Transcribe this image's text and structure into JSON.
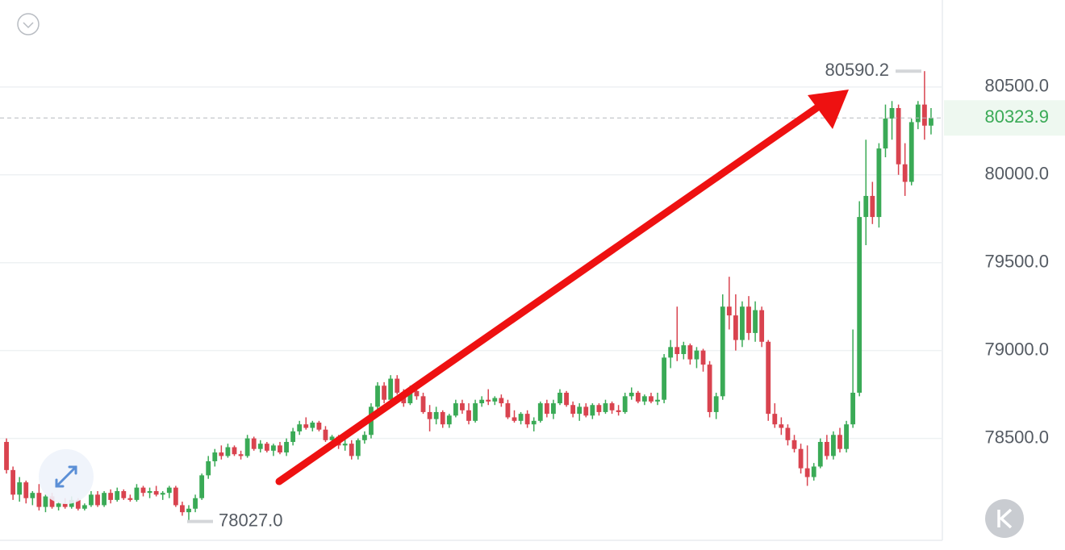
{
  "chart_data": {
    "type": "candlestick",
    "up_color": "#3aaa56",
    "down_color": "#d9434f",
    "ylim": [
      77920,
      80995
    ],
    "yticks": [
      {
        "value": 78500,
        "label": "78500.0"
      },
      {
        "value": 79000,
        "label": "79000.0"
      },
      {
        "value": 79500,
        "label": "79500.0"
      },
      {
        "value": 80000,
        "label": "80000.0"
      },
      {
        "value": 80500,
        "label": "80500.0"
      }
    ],
    "grid": true,
    "high_label": {
      "value": 80590.2,
      "label": "80590.2"
    },
    "low_label": {
      "value": 78027,
      "label": "78027.0"
    },
    "last_price": {
      "value": 80323.9,
      "label": "80323.9"
    },
    "candles": [
      [
        78480,
        78500,
        78300,
        78320
      ],
      [
        78320,
        78340,
        78150,
        78180
      ],
      [
        78180,
        78280,
        78140,
        78250
      ],
      [
        78250,
        78260,
        78130,
        78160
      ],
      [
        78160,
        78200,
        78120,
        78190
      ],
      [
        78190,
        78240,
        78090,
        78110
      ],
      [
        78110,
        78180,
        78080,
        78170
      ],
      [
        78170,
        78190,
        78100,
        78110
      ],
      [
        78110,
        78140,
        78090,
        78130
      ],
      [
        78130,
        78160,
        78100,
        78110
      ],
      [
        78110,
        78170,
        78100,
        78150
      ],
      [
        78150,
        78160,
        78090,
        78100
      ],
      [
        78100,
        78130,
        78090,
        78120
      ],
      [
        78120,
        78200,
        78110,
        78180
      ],
      [
        78180,
        78200,
        78110,
        78120
      ],
      [
        78120,
        78200,
        78110,
        78190
      ],
      [
        78190,
        78210,
        78130,
        78150
      ],
      [
        78150,
        78220,
        78140,
        78200
      ],
      [
        78200,
        78210,
        78150,
        78160
      ],
      [
        78160,
        78180,
        78140,
        78150
      ],
      [
        78150,
        78240,
        78140,
        78220
      ],
      [
        78220,
        78230,
        78170,
        78190
      ],
      [
        78190,
        78220,
        78160,
        78200
      ],
      [
        78200,
        78230,
        78170,
        78180
      ],
      [
        78180,
        78200,
        78150,
        78190
      ],
      [
        78190,
        78230,
        78160,
        78220
      ],
      [
        78220,
        78230,
        78110,
        78120
      ],
      [
        78120,
        78140,
        78060,
        78080
      ],
      [
        78080,
        78120,
        78027,
        78100
      ],
      [
        78100,
        78180,
        78080,
        78160
      ],
      [
        78160,
        78300,
        78150,
        78290
      ],
      [
        78290,
        78400,
        78270,
        78370
      ],
      [
        78370,
        78440,
        78340,
        78420
      ],
      [
        78420,
        78460,
        78380,
        78400
      ],
      [
        78400,
        78470,
        78390,
        78450
      ],
      [
        78450,
        78460,
        78400,
        78410
      ],
      [
        78410,
        78430,
        78380,
        78400
      ],
      [
        78400,
        78520,
        78390,
        78500
      ],
      [
        78500,
        78510,
        78430,
        78440
      ],
      [
        78440,
        78490,
        78420,
        78470
      ],
      [
        78470,
        78480,
        78420,
        78430
      ],
      [
        78430,
        78470,
        78400,
        78460
      ],
      [
        78460,
        78480,
        78410,
        78420
      ],
      [
        78420,
        78500,
        78400,
        78480
      ],
      [
        78480,
        78560,
        78460,
        78540
      ],
      [
        78540,
        78600,
        78520,
        78580
      ],
      [
        78580,
        78620,
        78550,
        78560
      ],
      [
        78560,
        78600,
        78540,
        78590
      ],
      [
        78590,
        78600,
        78540,
        78550
      ],
      [
        78550,
        78570,
        78480,
        78490
      ],
      [
        78490,
        78520,
        78460,
        78510
      ],
      [
        78510,
        78520,
        78440,
        78460
      ],
      [
        78460,
        78500,
        78430,
        78470
      ],
      [
        78470,
        78490,
        78380,
        78400
      ],
      [
        78400,
        78500,
        78380,
        78490
      ],
      [
        78490,
        78540,
        78470,
        78520
      ],
      [
        78520,
        78700,
        78500,
        78680
      ],
      [
        78680,
        78820,
        78650,
        78800
      ],
      [
        78800,
        78820,
        78700,
        78720
      ],
      [
        78720,
        78860,
        78700,
        78840
      ],
      [
        78840,
        78860,
        78750,
        78760
      ],
      [
        78760,
        78780,
        78680,
        78700
      ],
      [
        78700,
        78800,
        78690,
        78770
      ],
      [
        78770,
        78780,
        78720,
        78740
      ],
      [
        78740,
        78760,
        78640,
        78650
      ],
      [
        78650,
        78690,
        78540,
        78610
      ],
      [
        78610,
        78680,
        78580,
        78650
      ],
      [
        78650,
        78660,
        78560,
        78580
      ],
      [
        78580,
        78640,
        78560,
        78630
      ],
      [
        78630,
        78720,
        78620,
        78700
      ],
      [
        78700,
        78720,
        78640,
        78660
      ],
      [
        78660,
        78700,
        78580,
        78600
      ],
      [
        78600,
        78720,
        78590,
        78700
      ],
      [
        78700,
        78740,
        78680,
        78720
      ],
      [
        78720,
        78780,
        78690,
        78710
      ],
      [
        78710,
        78740,
        78690,
        78730
      ],
      [
        78730,
        78750,
        78680,
        78700
      ],
      [
        78700,
        78720,
        78610,
        78620
      ],
      [
        78620,
        78660,
        78590,
        78600
      ],
      [
        78600,
        78650,
        78580,
        78640
      ],
      [
        78640,
        78660,
        78560,
        78580
      ],
      [
        78580,
        78620,
        78540,
        78600
      ],
      [
        78600,
        78710,
        78590,
        78700
      ],
      [
        78700,
        78720,
        78620,
        78640
      ],
      [
        78640,
        78720,
        78610,
        78700
      ],
      [
        78700,
        78780,
        78690,
        78760
      ],
      [
        78760,
        78770,
        78680,
        78690
      ],
      [
        78690,
        78710,
        78620,
        78640
      ],
      [
        78640,
        78700,
        78600,
        78680
      ],
      [
        78680,
        78700,
        78620,
        78630
      ],
      [
        78630,
        78700,
        78610,
        78690
      ],
      [
        78690,
        78700,
        78630,
        78650
      ],
      [
        78650,
        78720,
        78640,
        78700
      ],
      [
        78700,
        78710,
        78640,
        78660
      ],
      [
        78660,
        78690,
        78630,
        78650
      ],
      [
        78650,
        78760,
        78640,
        78740
      ],
      [
        78740,
        78790,
        78720,
        78760
      ],
      [
        78760,
        78770,
        78700,
        78710
      ],
      [
        78710,
        78750,
        78690,
        78740
      ],
      [
        78740,
        78760,
        78700,
        78710
      ],
      [
        78710,
        78760,
        78690,
        78720
      ],
      [
        78720,
        78980,
        78700,
        78960
      ],
      [
        78960,
        79060,
        78900,
        79020
      ],
      [
        79020,
        79250,
        78940,
        78980
      ],
      [
        78980,
        79050,
        78950,
        79030
      ],
      [
        79030,
        79040,
        78920,
        78950
      ],
      [
        78950,
        79020,
        78900,
        79000
      ],
      [
        79000,
        79010,
        78880,
        78920
      ],
      [
        78920,
        78940,
        78620,
        78650
      ],
      [
        78650,
        78760,
        78610,
        78740
      ],
      [
        78740,
        79320,
        78720,
        79250
      ],
      [
        79250,
        79420,
        79120,
        79200
      ],
      [
        79200,
        79320,
        79000,
        79060
      ],
      [
        79060,
        79280,
        79020,
        79250
      ],
      [
        79250,
        79310,
        79060,
        79100
      ],
      [
        79100,
        79280,
        79050,
        79230
      ],
      [
        79230,
        79250,
        79020,
        79050
      ],
      [
        79050,
        79060,
        78600,
        78640
      ],
      [
        78640,
        78700,
        78560,
        78580
      ],
      [
        78580,
        78620,
        78520,
        78560
      ],
      [
        78560,
        78580,
        78460,
        78490
      ],
      [
        78490,
        78520,
        78420,
        78440
      ],
      [
        78440,
        78470,
        78300,
        78330
      ],
      [
        78330,
        78460,
        78230,
        78280
      ],
      [
        78280,
        78360,
        78260,
        78340
      ],
      [
        78340,
        78500,
        78330,
        78480
      ],
      [
        78480,
        78520,
        78380,
        78400
      ],
      [
        78400,
        78540,
        78380,
        78520
      ],
      [
        78520,
        78560,
        78420,
        78440
      ],
      [
        78440,
        78600,
        78420,
        78580
      ],
      [
        78580,
        79120,
        78560,
        78760
      ],
      [
        78760,
        79850,
        78740,
        79760
      ],
      [
        79760,
        80200,
        79600,
        79880
      ],
      [
        79880,
        79960,
        79720,
        79760
      ],
      [
        79760,
        80180,
        79700,
        80150
      ],
      [
        80150,
        80400,
        80100,
        80320
      ],
      [
        80320,
        80420,
        80200,
        80380
      ],
      [
        80380,
        80400,
        80000,
        80060
      ],
      [
        80060,
        80180,
        79880,
        79960
      ],
      [
        79960,
        80320,
        79940,
        80300
      ],
      [
        80300,
        80420,
        80260,
        80400
      ],
      [
        80400,
        80590.2,
        80200,
        80280
      ],
      [
        80280,
        80380,
        80230,
        80323.9
      ]
    ]
  }
}
